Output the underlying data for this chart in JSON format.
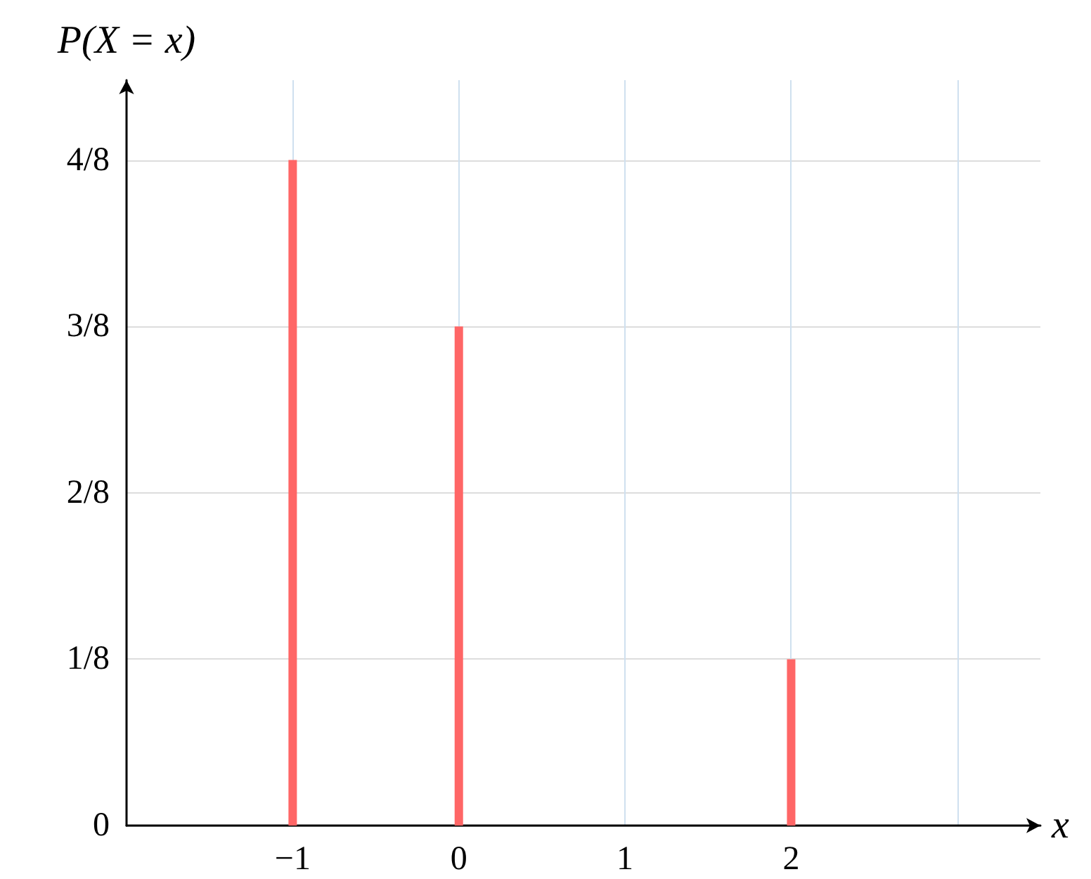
{
  "chart_data": {
    "type": "bar",
    "xlabel": "x",
    "ylabel": "P(X = x)",
    "x": [
      -1,
      0,
      2
    ],
    "values": [
      0.5,
      0.375,
      0.125
    ],
    "color": "#ff6666",
    "xlim": [
      -2,
      3.5
    ],
    "xticks": [
      -1,
      0,
      1,
      2,
      {
        "value": 3,
        "label": null
      }
    ],
    "ylim": [
      0,
      0.56
    ],
    "yticks": [
      {
        "value": 0,
        "label": "0"
      },
      {
        "value": 0.125,
        "label": "1/8"
      },
      {
        "value": 0.25,
        "label": "2/8"
      },
      {
        "value": 0.375,
        "label": "3/8"
      },
      {
        "value": 0.5,
        "label": "4/8"
      }
    ],
    "grid": true
  }
}
